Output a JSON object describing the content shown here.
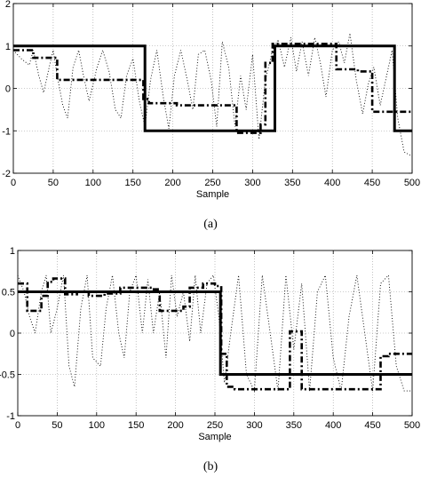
{
  "chart_data": [
    {
      "type": "line",
      "caption": "(a)",
      "xlabel": "Sample",
      "ylabel": "",
      "xlim": [
        0,
        500
      ],
      "ylim": [
        -2,
        2
      ],
      "xticks": [
        0,
        50,
        100,
        150,
        200,
        250,
        300,
        350,
        400,
        450,
        500
      ],
      "yticks": [
        2,
        1,
        0,
        -1,
        -2
      ],
      "grid": true,
      "series": [
        {
          "style": "solid",
          "color": "#000000",
          "points": [
            [
              0,
              1
            ],
            [
              165,
              1
            ],
            [
              165,
              -1
            ],
            [
              328,
              -1
            ],
            [
              328,
              1
            ],
            [
              478,
              1
            ],
            [
              478,
              -1
            ],
            [
              500,
              -1
            ]
          ]
        },
        {
          "style": "dashdot",
          "color": "#000000",
          "points": [
            [
              0,
              0.9
            ],
            [
              25,
              0.9
            ],
            [
              25,
              0.72
            ],
            [
              55,
              0.72
            ],
            [
              55,
              0.2
            ],
            [
              163,
              0.2
            ],
            [
              163,
              -0.25
            ],
            [
              170,
              -0.25
            ],
            [
              170,
              -0.35
            ],
            [
              205,
              -0.35
            ],
            [
              205,
              -0.4
            ],
            [
              280,
              -0.4
            ],
            [
              280,
              -1.05
            ],
            [
              310,
              -1.05
            ],
            [
              310,
              -0.85
            ],
            [
              316,
              -0.85
            ],
            [
              316,
              0.6
            ],
            [
              325,
              0.6
            ],
            [
              325,
              1.05
            ],
            [
              405,
              1.05
            ],
            [
              405,
              0.45
            ],
            [
              432,
              0.45
            ],
            [
              432,
              0.4
            ],
            [
              450,
              0.4
            ],
            [
              450,
              -0.55
            ],
            [
              500,
              -0.55
            ]
          ]
        },
        {
          "style": "dotted",
          "color": "#000000",
          "points": [
            [
              0,
              0.9
            ],
            [
              10,
              0.7
            ],
            [
              20,
              0.55
            ],
            [
              25,
              0.9
            ],
            [
              32,
              0.3
            ],
            [
              38,
              -0.1
            ],
            [
              45,
              0.5
            ],
            [
              50,
              0.9
            ],
            [
              55,
              0.3
            ],
            [
              62,
              -0.4
            ],
            [
              68,
              -0.7
            ],
            [
              75,
              0.5
            ],
            [
              82,
              0.9
            ],
            [
              88,
              0.3
            ],
            [
              95,
              -0.3
            ],
            [
              105,
              0.5
            ],
            [
              112,
              0.9
            ],
            [
              120,
              0.4
            ],
            [
              128,
              -0.5
            ],
            [
              135,
              -0.7
            ],
            [
              142,
              0.3
            ],
            [
              150,
              0.7
            ],
            [
              158,
              -0.3
            ],
            [
              165,
              -0.9
            ],
            [
              172,
              0.2
            ],
            [
              180,
              0.9
            ],
            [
              188,
              -0.2
            ],
            [
              195,
              -0.95
            ],
            [
              202,
              0.3
            ],
            [
              210,
              0.9
            ],
            [
              218,
              0.2
            ],
            [
              225,
              -0.5
            ],
            [
              232,
              0.8
            ],
            [
              240,
              0.9
            ],
            [
              248,
              0.2
            ],
            [
              255,
              -0.9
            ],
            [
              262,
              1.1
            ],
            [
              270,
              0.5
            ],
            [
              278,
              -0.9
            ],
            [
              285,
              0.3
            ],
            [
              292,
              -0.5
            ],
            [
              300,
              0.8
            ],
            [
              308,
              -1.2
            ],
            [
              316,
              0.2
            ],
            [
              325,
              0.9
            ],
            [
              332,
              1.15
            ],
            [
              340,
              0.5
            ],
            [
              348,
              1.2
            ],
            [
              355,
              0.4
            ],
            [
              362,
              1.1
            ],
            [
              370,
              0.3
            ],
            [
              378,
              1.2
            ],
            [
              385,
              0.6
            ],
            [
              392,
              -0.2
            ],
            [
              400,
              0.9
            ],
            [
              408,
              1.1
            ],
            [
              415,
              0.6
            ],
            [
              422,
              1.3
            ],
            [
              430,
              0.2
            ],
            [
              438,
              -0.6
            ],
            [
              445,
              0.1
            ],
            [
              452,
              0.5
            ],
            [
              460,
              -0.4
            ],
            [
              468,
              0.3
            ],
            [
              475,
              0.9
            ],
            [
              482,
              -0.7
            ],
            [
              490,
              -1.5
            ],
            [
              500,
              -1.6
            ]
          ]
        }
      ]
    },
    {
      "type": "line",
      "caption": "(b)",
      "xlabel": "Sample",
      "ylabel": "",
      "xlim": [
        0,
        500
      ],
      "ylim": [
        -1,
        1
      ],
      "xticks": [
        0,
        50,
        100,
        150,
        200,
        250,
        300,
        350,
        400,
        450,
        500
      ],
      "yticks": [
        1,
        0.5,
        0,
        -0.5,
        -1
      ],
      "grid": true,
      "series": [
        {
          "style": "solid",
          "color": "#000000",
          "points": [
            [
              0,
              0.5
            ],
            [
              257,
              0.5
            ],
            [
              257,
              -0.5
            ],
            [
              500,
              -0.5
            ]
          ]
        },
        {
          "style": "dashdot",
          "color": "#000000",
          "points": [
            [
              0,
              0.6
            ],
            [
              12,
              0.6
            ],
            [
              12,
              0.27
            ],
            [
              30,
              0.27
            ],
            [
              30,
              0.45
            ],
            [
              38,
              0.45
            ],
            [
              38,
              0.62
            ],
            [
              45,
              0.62
            ],
            [
              45,
              0.66
            ],
            [
              60,
              0.66
            ],
            [
              60,
              0.47
            ],
            [
              75,
              0.47
            ],
            [
              75,
              0.5
            ],
            [
              90,
              0.5
            ],
            [
              90,
              0.45
            ],
            [
              110,
              0.45
            ],
            [
              110,
              0.48
            ],
            [
              130,
              0.48
            ],
            [
              130,
              0.55
            ],
            [
              170,
              0.55
            ],
            [
              170,
              0.53
            ],
            [
              180,
              0.53
            ],
            [
              180,
              0.27
            ],
            [
              210,
              0.27
            ],
            [
              210,
              0.32
            ],
            [
              218,
              0.32
            ],
            [
              218,
              0.55
            ],
            [
              235,
              0.55
            ],
            [
              235,
              0.6
            ],
            [
              250,
              0.6
            ],
            [
              250,
              0.57
            ],
            [
              258,
              0.57
            ],
            [
              258,
              -0.25
            ],
            [
              265,
              -0.25
            ],
            [
              265,
              -0.65
            ],
            [
              275,
              -0.65
            ],
            [
              275,
              -0.68
            ],
            [
              345,
              -0.68
            ],
            [
              345,
              0.02
            ],
            [
              360,
              0.02
            ],
            [
              360,
              -0.68
            ],
            [
              460,
              -0.68
            ],
            [
              460,
              -0.28
            ],
            [
              470,
              -0.28
            ],
            [
              470,
              -0.25
            ],
            [
              500,
              -0.25
            ]
          ]
        },
        {
          "style": "dotted",
          "color": "#000000",
          "points": [
            [
              0,
              0.7
            ],
            [
              8,
              0.5
            ],
            [
              15,
              0.2
            ],
            [
              22,
              0.0
            ],
            [
              30,
              0.5
            ],
            [
              36,
              0.7
            ],
            [
              42,
              0.0
            ],
            [
              50,
              0.3
            ],
            [
              58,
              0.7
            ],
            [
              65,
              -0.4
            ],
            [
              72,
              -0.65
            ],
            [
              80,
              0.3
            ],
            [
              88,
              0.7
            ],
            [
              95,
              -0.3
            ],
            [
              105,
              -0.4
            ],
            [
              112,
              0.3
            ],
            [
              120,
              0.7
            ],
            [
              128,
              0.0
            ],
            [
              135,
              -0.3
            ],
            [
              142,
              0.5
            ],
            [
              150,
              0.7
            ],
            [
              158,
              0.0
            ],
            [
              165,
              0.65
            ],
            [
              172,
              0.0
            ],
            [
              180,
              0.5
            ],
            [
              188,
              -0.3
            ],
            [
              195,
              0.7
            ],
            [
              202,
              0.2
            ],
            [
              210,
              0.5
            ],
            [
              218,
              -0.1
            ],
            [
              225,
              0.7
            ],
            [
              232,
              0.0
            ],
            [
              240,
              0.6
            ],
            [
              248,
              0.7
            ],
            [
              255,
              0.2
            ],
            [
              262,
              -0.6
            ],
            [
              270,
              0.0
            ],
            [
              280,
              0.7
            ],
            [
              290,
              -0.5
            ],
            [
              300,
              -0.7
            ],
            [
              310,
              0.7
            ],
            [
              320,
              0.0
            ],
            [
              330,
              -0.7
            ],
            [
              340,
              0.7
            ],
            [
              350,
              -0.2
            ],
            [
              360,
              0.6
            ],
            [
              370,
              -0.7
            ],
            [
              380,
              0.5
            ],
            [
              390,
              0.7
            ],
            [
              400,
              -0.3
            ],
            [
              410,
              -0.7
            ],
            [
              420,
              0.2
            ],
            [
              430,
              0.7
            ],
            [
              440,
              0.0
            ],
            [
              450,
              -0.7
            ],
            [
              460,
              0.6
            ],
            [
              470,
              0.7
            ],
            [
              480,
              -0.4
            ],
            [
              490,
              -0.7
            ],
            [
              500,
              -0.7
            ]
          ]
        }
      ]
    }
  ]
}
